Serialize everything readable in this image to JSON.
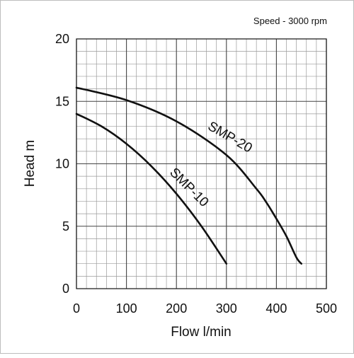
{
  "chart_data": {
    "type": "line",
    "title": "",
    "annotation": "Speed - 3000 rpm",
    "xlabel": "Flow l/min",
    "ylabel": "Head m",
    "xlim": [
      0,
      500
    ],
    "ylim": [
      0,
      20
    ],
    "grid": true,
    "legend": "none",
    "x_ticks": [
      "0",
      "100",
      "200",
      "300",
      "400",
      "500"
    ],
    "y_ticks": [
      "0",
      "5",
      "10",
      "15",
      "20"
    ],
    "series": [
      {
        "name": "SMP-10",
        "color": "#111111",
        "x": [
          0,
          50,
          100,
          150,
          200,
          250,
          300
        ],
        "y": [
          14,
          13,
          11.6,
          9.8,
          7.6,
          5,
          2
        ]
      },
      {
        "name": "SMP-20",
        "color": "#111111",
        "x": [
          0,
          100,
          200,
          300,
          360,
          380,
          400,
          420,
          440,
          450
        ],
        "y": [
          16.1,
          15.1,
          13.4,
          10.7,
          8,
          6.9,
          5.6,
          4.2,
          2.5,
          2
        ]
      }
    ]
  }
}
